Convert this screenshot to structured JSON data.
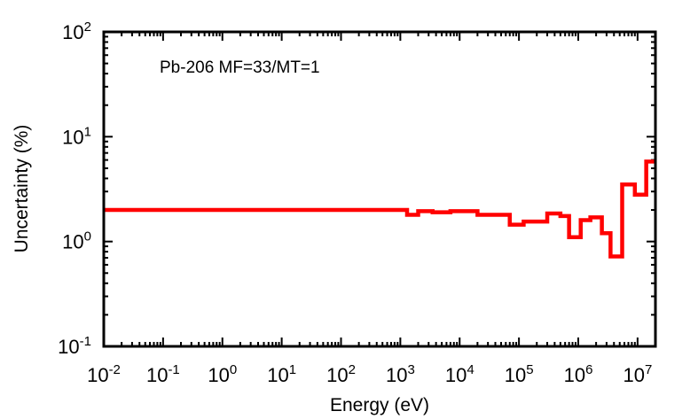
{
  "chart_data": {
    "type": "line",
    "step": true,
    "annotation": "Pb-206 MF=33/MT=1",
    "xlabel": "Energy (eV)",
    "ylabel": "Uncertainty (%)",
    "xscale": "log",
    "yscale": "log",
    "xlim": [
      0.01,
      20000000
    ],
    "ylim": [
      0.1,
      100
    ],
    "grid": false,
    "x_ticks": [
      {
        "base": "10",
        "exp": "-2",
        "value": 0.01
      },
      {
        "base": "10",
        "exp": "-1",
        "value": 0.1
      },
      {
        "base": "10",
        "exp": "0",
        "value": 1
      },
      {
        "base": "10",
        "exp": "1",
        "value": 10
      },
      {
        "base": "10",
        "exp": "2",
        "value": 100
      },
      {
        "base": "10",
        "exp": "3",
        "value": 1000
      },
      {
        "base": "10",
        "exp": "4",
        "value": 10000
      },
      {
        "base": "10",
        "exp": "5",
        "value": 100000
      },
      {
        "base": "10",
        "exp": "6",
        "value": 1000000
      },
      {
        "base": "10",
        "exp": "7",
        "value": 10000000
      }
    ],
    "y_ticks": [
      {
        "base": "10",
        "exp": "-1",
        "value": 0.1
      },
      {
        "base": "10",
        "exp": "0",
        "value": 1
      },
      {
        "base": "10",
        "exp": "1",
        "value": 10
      },
      {
        "base": "10",
        "exp": "2",
        "value": 100
      }
    ],
    "series": [
      {
        "color": "#ff0000",
        "x": [
          0.01,
          1300,
          2000,
          3500,
          7000,
          20000,
          40000,
          70000,
          120000,
          300000,
          500000,
          700000,
          1100000,
          1600000,
          2500000,
          3500000,
          5500000,
          9000000,
          14000000,
          20000000
        ],
        "y": [
          2.0,
          1.8,
          1.95,
          1.9,
          1.95,
          1.8,
          1.8,
          1.45,
          1.55,
          1.85,
          1.75,
          1.1,
          1.6,
          1.7,
          1.2,
          0.72,
          3.5,
          2.8,
          5.8,
          5.8
        ]
      }
    ]
  }
}
